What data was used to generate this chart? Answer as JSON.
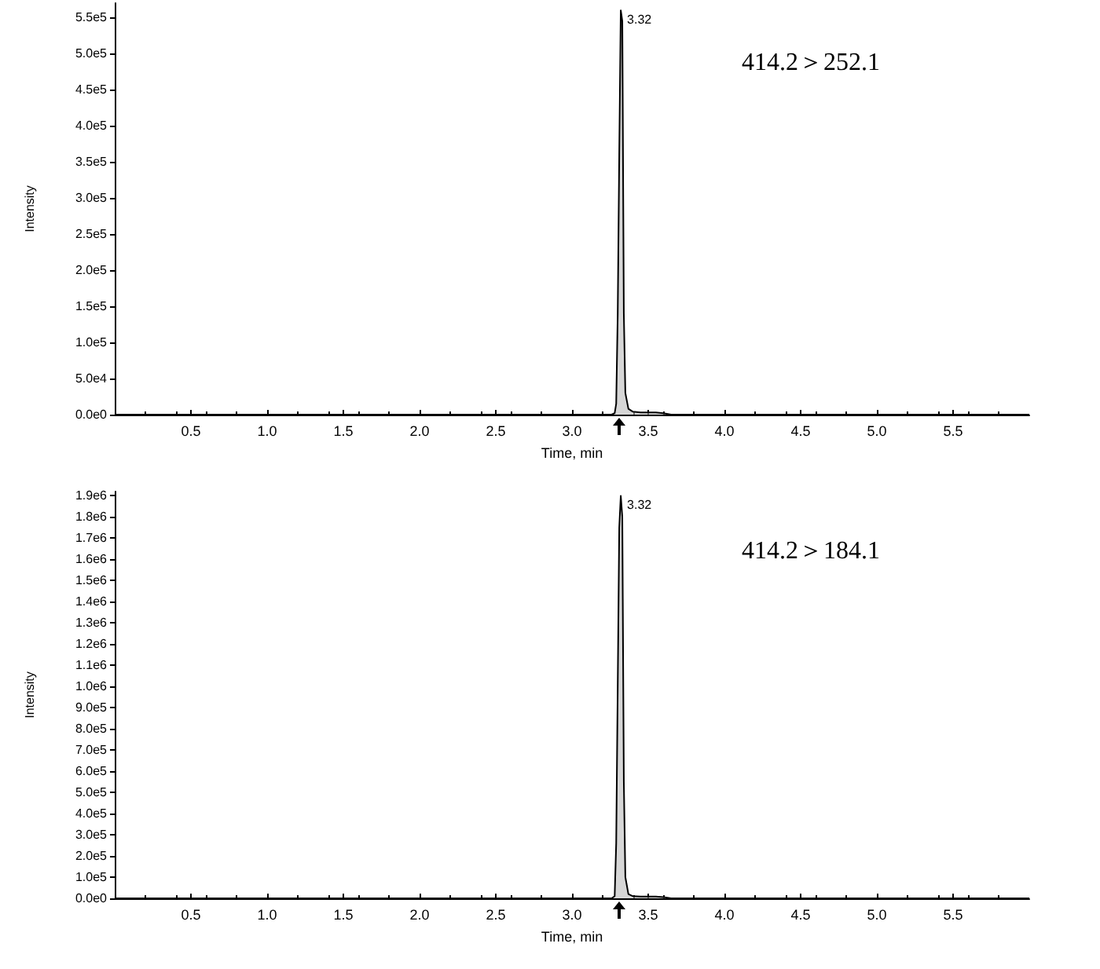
{
  "chart_data": [
    {
      "type": "area",
      "xlabel": "Time, min",
      "ylabel": "Intensity",
      "xlim": [
        0,
        6
      ],
      "ylim": [
        0,
        570000
      ],
      "xticks": [
        0.5,
        {
          "value": 1,
          "label": "1.0"
        },
        1.5,
        {
          "value": 2,
          "label": "2.0"
        },
        2.5,
        {
          "value": 3,
          "label": "3.0"
        },
        3.5,
        {
          "value": 4,
          "label": "4.0"
        },
        4.5,
        {
          "value": 5,
          "label": "5.0"
        },
        5.5
      ],
      "yticks": [
        {
          "value": 0,
          "label": "0.0e0"
        },
        {
          "value": 50000,
          "label": "5.0e4"
        },
        {
          "value": 100000,
          "label": "1.0e5"
        },
        {
          "value": 150000,
          "label": "1.5e5"
        },
        {
          "value": 200000,
          "label": "2.0e5"
        },
        {
          "value": 250000,
          "label": "2.5e5"
        },
        {
          "value": 300000,
          "label": "3.0e5"
        },
        {
          "value": 350000,
          "label": "3.5e5"
        },
        {
          "value": 400000,
          "label": "4.0e5"
        },
        {
          "value": 450000,
          "label": "4.5e5"
        },
        {
          "value": 500000,
          "label": "5.0e5"
        },
        {
          "value": 550000,
          "label": "5.5e5"
        }
      ],
      "series": [
        {
          "color": "#000000",
          "x": [
            0,
            3.26,
            3.28,
            3.29,
            3.3,
            3.31,
            3.32,
            3.33,
            3.34,
            3.35,
            3.37,
            3.4,
            3.45,
            3.5,
            3.55,
            3.6,
            3.65,
            6.0
          ],
          "values": [
            0,
            0,
            2000,
            15000,
            140000,
            360000,
            560000,
            545000,
            140000,
            30000,
            8000,
            4000,
            3000,
            3000,
            3000,
            2000,
            0,
            0
          ]
        }
      ],
      "annotations": [
        {
          "text": "3.32",
          "x": 3.32,
          "y": 560000
        },
        "414.2＞252.1"
      ]
    },
    {
      "type": "area",
      "xlabel": "Time, min",
      "ylabel": "Intensity",
      "xlim": [
        0,
        6
      ],
      "ylim": [
        0,
        1920000
      ],
      "xticks": [
        0.5,
        {
          "value": 1,
          "label": "1.0"
        },
        1.5,
        {
          "value": 2,
          "label": "2.0"
        },
        2.5,
        {
          "value": 3,
          "label": "3.0"
        },
        3.5,
        {
          "value": 4,
          "label": "4.0"
        },
        4.5,
        {
          "value": 5,
          "label": "5.0"
        },
        5.5
      ],
      "yticks": [
        {
          "value": 0,
          "label": "0.0e0"
        },
        {
          "value": 100000,
          "label": "1.0e5"
        },
        {
          "value": 200000,
          "label": "2.0e5"
        },
        {
          "value": 300000,
          "label": "3.0e5"
        },
        {
          "value": 400000,
          "label": "4.0e5"
        },
        {
          "value": 500000,
          "label": "5.0e5"
        },
        {
          "value": 600000,
          "label": "6.0e5"
        },
        {
          "value": 700000,
          "label": "7.0e5"
        },
        {
          "value": 800000,
          "label": "8.0e5"
        },
        {
          "value": 900000,
          "label": "9.0e5"
        },
        {
          "value": 1000000,
          "label": "1.0e6"
        },
        {
          "value": 1100000,
          "label": "1.1e6"
        },
        {
          "value": 1200000,
          "label": "1.2e6"
        },
        {
          "value": 1300000,
          "label": "1.3e6"
        },
        {
          "value": 1400000,
          "label": "1.4e6"
        },
        {
          "value": 1500000,
          "label": "1.5e6"
        },
        {
          "value": 1600000,
          "label": "1.6e6"
        },
        {
          "value": 1700000,
          "label": "1.7e6"
        },
        {
          "value": 1800000,
          "label": "1.8e6"
        },
        {
          "value": 1900000,
          "label": "1.9e6"
        }
      ],
      "series": [
        {
          "color": "#000000",
          "x": [
            0,
            3.26,
            3.28,
            3.29,
            3.3,
            3.31,
            3.32,
            3.33,
            3.34,
            3.35,
            3.37,
            3.4,
            3.45,
            3.5,
            3.55,
            3.6,
            3.65,
            6.0
          ],
          "values": [
            0,
            0,
            10000,
            260000,
            1000000,
            1750000,
            1900000,
            1800000,
            550000,
            100000,
            20000,
            10000,
            8000,
            8000,
            8000,
            6000,
            0,
            0
          ]
        }
      ],
      "annotations": [
        {
          "text": "3.32",
          "x": 3.32,
          "y": 1900000
        },
        "414.2＞184.1"
      ]
    }
  ]
}
